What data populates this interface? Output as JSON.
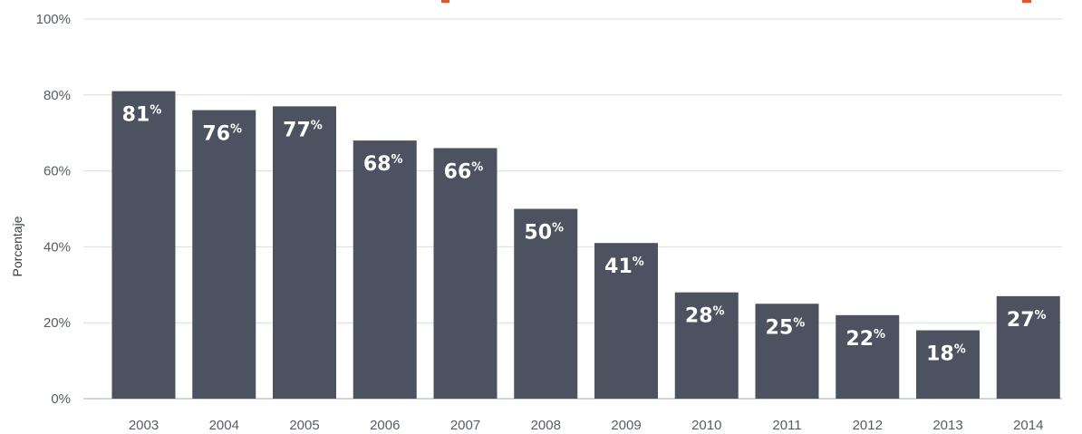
{
  "chart_data": {
    "type": "bar",
    "title": "",
    "xlabel": "",
    "ylabel": "Porcentaje",
    "categories": [
      "2003",
      "2004",
      "2005",
      "2006",
      "2007",
      "2008",
      "2009",
      "2010",
      "2011",
      "2012",
      "2013",
      "2014"
    ],
    "values": [
      81,
      76,
      77,
      68,
      66,
      50,
      41,
      28,
      25,
      22,
      18,
      27
    ],
    "value_labels": [
      "81",
      "76",
      "77",
      "68",
      "66",
      "50",
      "41",
      "28",
      "25",
      "22",
      "18",
      "27"
    ],
    "value_label_unit": "%",
    "ylim": [
      0,
      100
    ],
    "yticks": [
      0,
      20,
      40,
      60,
      80,
      100
    ],
    "ytick_labels": [
      "0%",
      "20%",
      "40%",
      "60%",
      "80%",
      "100%"
    ],
    "grid": true,
    "legend": "none",
    "colors": {
      "bar": "#4d5261",
      "grid": "#dadde2",
      "axis": "#c4c8ce",
      "value_text": "#ffffff",
      "tick_text": "#555d6b",
      "title_accent": "#e8552a"
    }
  }
}
